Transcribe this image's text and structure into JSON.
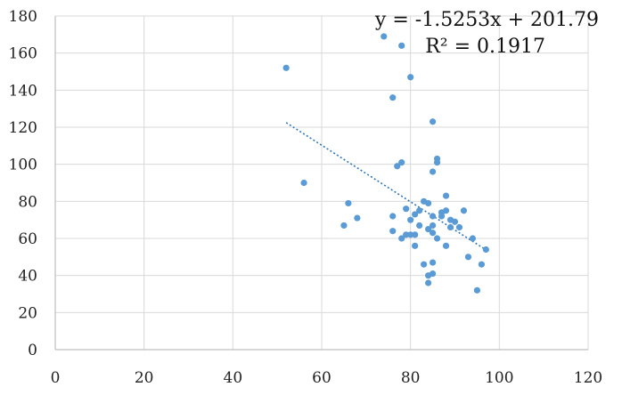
{
  "chart_data": {
    "type": "scatter",
    "title": "",
    "xlabel": "",
    "ylabel": "",
    "xlim": [
      0,
      120
    ],
    "ylim": [
      0,
      180
    ],
    "x_ticks": [
      0,
      20,
      40,
      60,
      80,
      100,
      120
    ],
    "y_ticks": [
      0,
      20,
      40,
      60,
      80,
      100,
      120,
      140,
      160,
      180
    ],
    "grid": true,
    "legend": "none",
    "colors": {
      "points": "#5b9bd5",
      "trendline": "#2e75b6"
    },
    "series": [
      {
        "points": [
          [
            52,
            152
          ],
          [
            56,
            90
          ],
          [
            65,
            67
          ],
          [
            66,
            79
          ],
          [
            68,
            71
          ],
          [
            74,
            169
          ],
          [
            76,
            136
          ],
          [
            76,
            72
          ],
          [
            76,
            64
          ],
          [
            77,
            99
          ],
          [
            78,
            101
          ],
          [
            78,
            164
          ],
          [
            78,
            60
          ],
          [
            79,
            62
          ],
          [
            79,
            76
          ],
          [
            80,
            147
          ],
          [
            80,
            70
          ],
          [
            80,
            62
          ],
          [
            81,
            56
          ],
          [
            81,
            62
          ],
          [
            81,
            73
          ],
          [
            82,
            75
          ],
          [
            82,
            67
          ],
          [
            83,
            46
          ],
          [
            83,
            80
          ],
          [
            84,
            40
          ],
          [
            84,
            36
          ],
          [
            84,
            65
          ],
          [
            84,
            79
          ],
          [
            85,
            123
          ],
          [
            85,
            96
          ],
          [
            85,
            72
          ],
          [
            85,
            67
          ],
          [
            85,
            63
          ],
          [
            85,
            47
          ],
          [
            85,
            41
          ],
          [
            86,
            103
          ],
          [
            86,
            101
          ],
          [
            86,
            60
          ],
          [
            87,
            74
          ],
          [
            87,
            72
          ],
          [
            88,
            83
          ],
          [
            88,
            75
          ],
          [
            88,
            56
          ],
          [
            89,
            70
          ],
          [
            89,
            66
          ],
          [
            90,
            69
          ],
          [
            91,
            66
          ],
          [
            92,
            75
          ],
          [
            93,
            50
          ],
          [
            94,
            60
          ],
          [
            95,
            32
          ],
          [
            96,
            46
          ],
          [
            97,
            54
          ]
        ]
      }
    ],
    "trendline": {
      "type": "linear",
      "slope": -1.5253,
      "intercept": 201.79,
      "x_range": [
        52,
        97
      ],
      "equation": "y = -1.5253x + 201.79",
      "r_squared": "R² = 0.1917"
    }
  }
}
